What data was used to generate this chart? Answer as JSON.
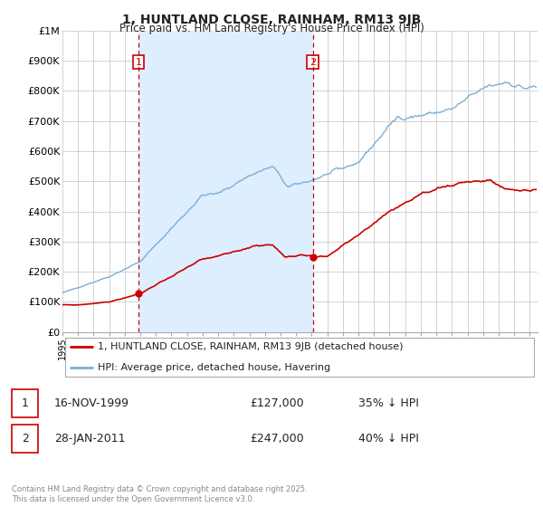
{
  "title": "1, HUNTLAND CLOSE, RAINHAM, RM13 9JB",
  "subtitle": "Price paid vs. HM Land Registry's House Price Index (HPI)",
  "ylabel_ticks": [
    "£0",
    "£100K",
    "£200K",
    "£300K",
    "£400K",
    "£500K",
    "£600K",
    "£700K",
    "£800K",
    "£900K",
    "£1M"
  ],
  "ytick_vals": [
    0,
    100000,
    200000,
    300000,
    400000,
    500000,
    600000,
    700000,
    800000,
    900000,
    1000000
  ],
  "ylim": [
    0,
    1000000
  ],
  "xlim_start": 1995.0,
  "xlim_end": 2025.5,
  "purchase1_date": 1999.88,
  "purchase1_price": 127000,
  "purchase1_label": "1",
  "purchase2_date": 2011.08,
  "purchase2_price": 247000,
  "purchase2_label": "2",
  "legend_line1": "1, HUNTLAND CLOSE, RAINHAM, RM13 9JB (detached house)",
  "legend_line2": "HPI: Average price, detached house, Havering",
  "table_row1_num": "1",
  "table_row1_date": "16-NOV-1999",
  "table_row1_price": "£127,000",
  "table_row1_hpi": "35% ↓ HPI",
  "table_row2_num": "2",
  "table_row2_date": "28-JAN-2011",
  "table_row2_price": "£247,000",
  "table_row2_hpi": "40% ↓ HPI",
  "footer": "Contains HM Land Registry data © Crown copyright and database right 2025.\nThis data is licensed under the Open Government Licence v3.0.",
  "price_color": "#cc0000",
  "hpi_color": "#7aafd4",
  "shade_color": "#ddeeff",
  "vline_color": "#cc0000",
  "background_color": "#ffffff",
  "grid_color": "#cccccc"
}
